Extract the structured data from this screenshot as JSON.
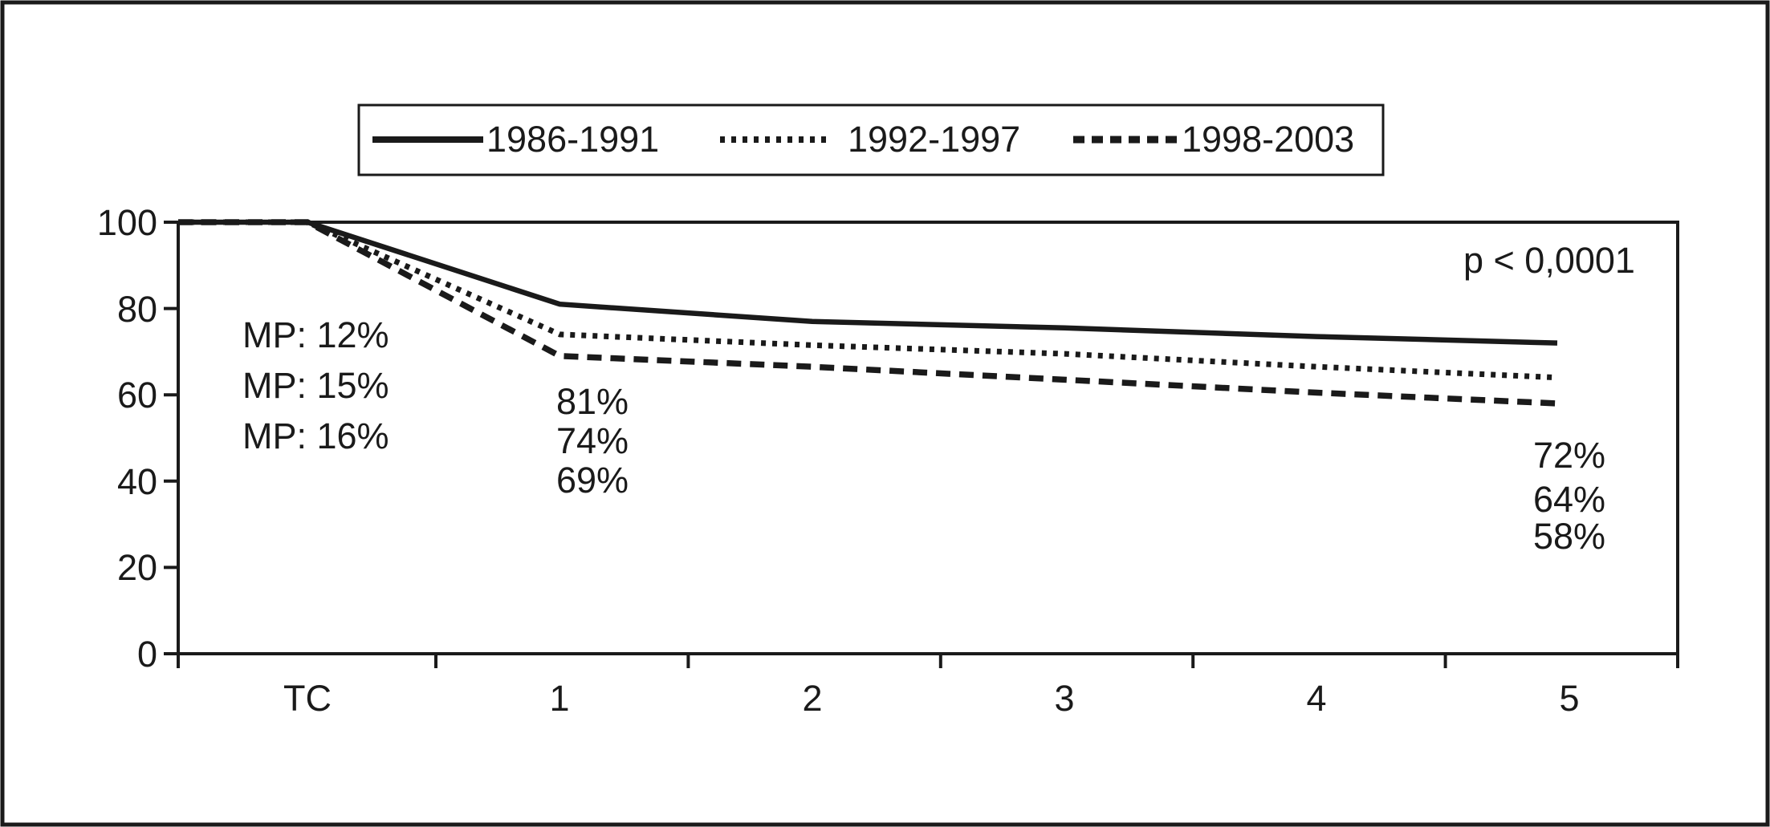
{
  "chart_data": {
    "type": "line",
    "title": "",
    "xlabel": "",
    "ylabel": "",
    "categories": [
      "TC",
      "1",
      "2",
      "3",
      "4",
      "5"
    ],
    "x_tick_labels": [
      "TC",
      "1",
      "2",
      "3",
      "4",
      "5"
    ],
    "y_tick_labels": [
      "100",
      "80",
      "60",
      "40",
      "20",
      "0"
    ],
    "ylim": [
      0,
      100
    ],
    "grid": false,
    "legend_position": "top",
    "p_value_label": "p < 0,0001",
    "line_color": "#1a1a1a",
    "background_color": "#ffffff",
    "series": [
      {
        "name": "1986-1991",
        "line_style": "solid",
        "values": [
          100,
          81,
          77,
          75.5,
          73.5,
          72
        ],
        "mp_label": "MP: 12%",
        "label_year1": "81%",
        "label_year5": "72%"
      },
      {
        "name": "1992-1997",
        "line_style": "dotted",
        "values": [
          100,
          74,
          71.5,
          69.5,
          66.5,
          64
        ],
        "mp_label": "MP: 15%",
        "label_year1": "74%",
        "label_year5": "64%"
      },
      {
        "name": "1998-2003",
        "line_style": "dashed",
        "values": [
          100,
          69,
          66.5,
          63.5,
          60.5,
          58
        ],
        "mp_label": "MP: 16%",
        "label_year1": "69%",
        "label_year5": "58%"
      }
    ]
  }
}
